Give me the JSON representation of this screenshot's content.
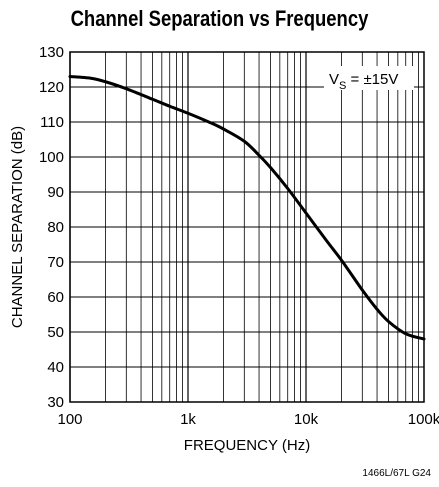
{
  "chart_data": {
    "type": "line",
    "title": "Channel Separation vs Frequency",
    "xlabel": "FREQUENCY (Hz)",
    "ylabel": "CHANNEL SEPARATION (dB)",
    "xscale": "log",
    "xlim": [
      100,
      100000
    ],
    "ylim": [
      30,
      130
    ],
    "xticks": [
      100,
      1000,
      10000,
      100000
    ],
    "xtick_labels": [
      "100",
      "1k",
      "10k",
      "100k"
    ],
    "yticks": [
      30,
      40,
      50,
      60,
      70,
      80,
      90,
      100,
      110,
      120,
      130
    ],
    "grid": true,
    "annotation": {
      "main": "V",
      "sub": "S",
      "rest": " = ±15V"
    },
    "series": [
      {
        "x": [
          100,
          150,
          200,
          300,
          500,
          700,
          1000,
          1500,
          2000,
          3000,
          4000,
          5000,
          7000,
          10000,
          15000,
          20000,
          30000,
          40000,
          50000,
          70000,
          100000
        ],
        "values": [
          123,
          122.5,
          121.5,
          119.5,
          116.5,
          114.5,
          112.5,
          110,
          108,
          104.5,
          100.5,
          97,
          91,
          84,
          76,
          70.5,
          62,
          56.5,
          53,
          49.5,
          48
        ]
      }
    ],
    "line_color": "#000000"
  },
  "footer": {
    "ref": "1466L/67L G24"
  }
}
